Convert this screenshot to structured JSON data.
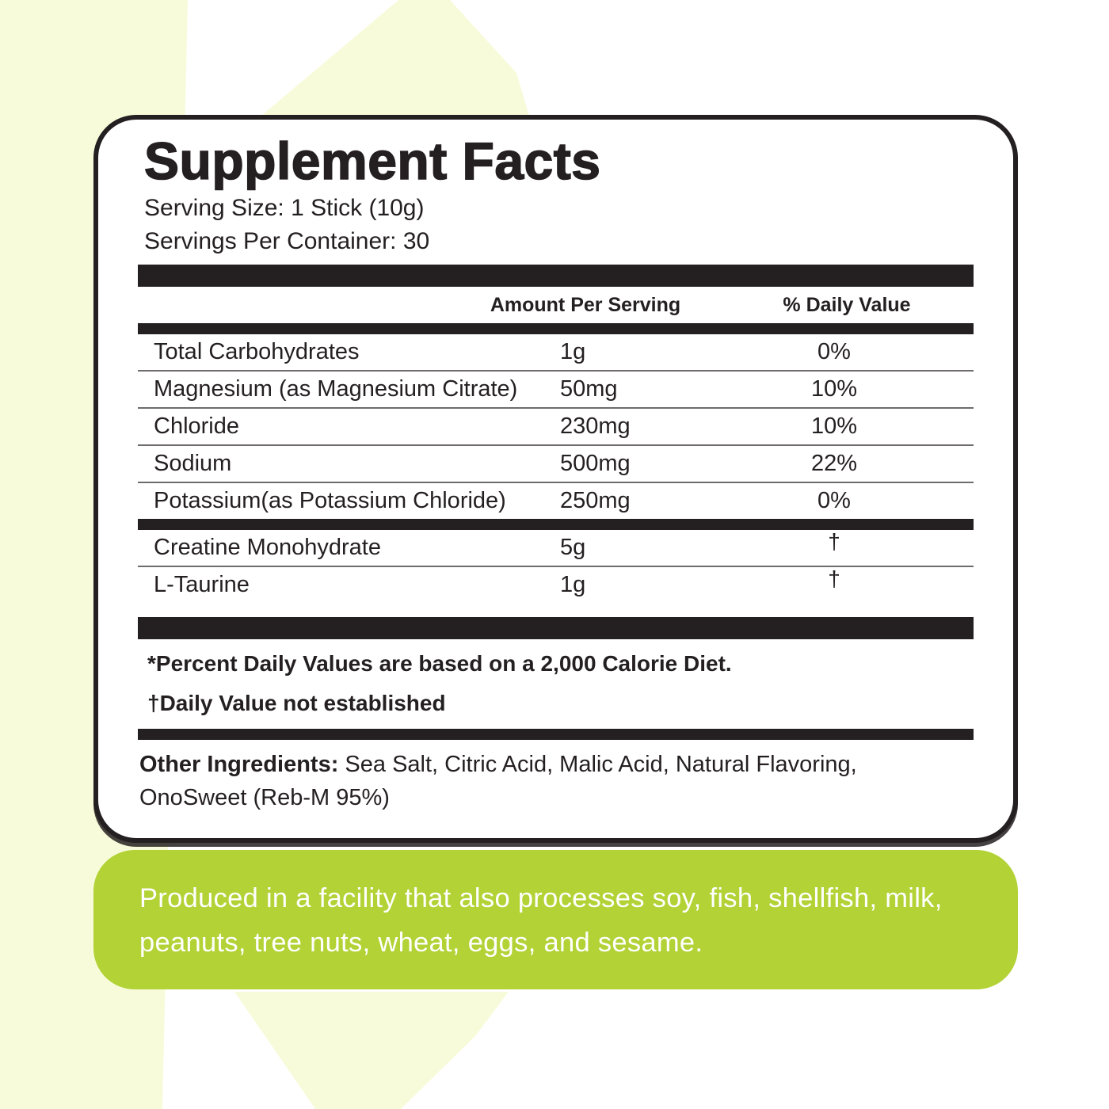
{
  "label": {
    "title": "Supplement Facts",
    "serving_size": "Serving Size: 1 Stick (10g)",
    "servings_per_container": "Servings Per Container: 30",
    "columns": {
      "amount": "Amount Per Serving",
      "daily_value": "% Daily Value"
    },
    "rows": [
      {
        "name": "Total Carbohydrates",
        "amount": "1g",
        "dv": "0%"
      },
      {
        "name": "Magnesium (as Magnesium Citrate)",
        "amount": "50mg",
        "dv": "10%"
      },
      {
        "name": "Chloride",
        "amount": "230mg",
        "dv": "10%"
      },
      {
        "name": "Sodium",
        "amount": "500mg",
        "dv": "22%"
      },
      {
        "name": "Potassium(as Potassium Chloride)",
        "amount": "250mg",
        "dv": "0%"
      },
      {
        "name": "Creatine Monohydrate",
        "amount": "5g",
        "dv": "†"
      },
      {
        "name": "L-Taurine",
        "amount": "1g",
        "dv": "†"
      }
    ],
    "footnotes": [
      "*Percent Daily Values are based on a 2,000 Calorie Diet.",
      "†Daily Value not established"
    ],
    "other_ingredients_label": "Other Ingredients:",
    "other_ingredients_text": " Sea Salt, Citric Acid, Malic Acid, Natural Flavoring, OnoSweet (Reb-M 95%)"
  },
  "allergen_box": {
    "text": "Produced in a facility that also processes soy, fish, shellfish, milk, peanuts, tree nuts, wheat, eggs, and sesame."
  },
  "colors": {
    "accent_green": "#b2d235",
    "pale_shape": "#f8fbda",
    "ink": "#241f20",
    "row_divider": "#6f6b6c",
    "allergen_text": "#ffffff"
  }
}
